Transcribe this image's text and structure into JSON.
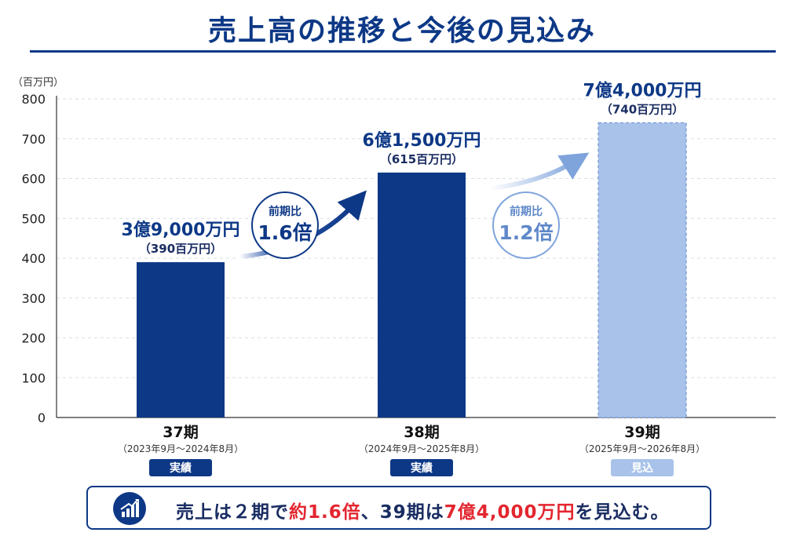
{
  "title": "売上高の推移と今後の見込み",
  "unit_label": "（百万円）",
  "chart_data": {
    "type": "bar",
    "ylabel": "（百万円）",
    "ylim": [
      0,
      800
    ],
    "yticks": [
      "0",
      "100",
      "200",
      "300",
      "400",
      "500",
      "600",
      "700",
      "800"
    ],
    "ytick_values": [
      0,
      100,
      200,
      300,
      400,
      500,
      600,
      700,
      800
    ],
    "grid": true,
    "categories": [
      "37期",
      "38期",
      "39期"
    ],
    "periods": [
      "（2023年9月～2024年8月）",
      "（2024年9月～2025年8月）",
      "（2025年9月～2026年8月）"
    ],
    "status": [
      "実績",
      "実績",
      "見込"
    ],
    "values": [
      390,
      615,
      740
    ],
    "labels_main": [
      "3億9,000万円",
      "6億1,500万円",
      "7億4,000万円"
    ],
    "labels_sub": [
      "（390百万円）",
      "（615百万円）",
      "（740百万円）"
    ],
    "colors": {
      "actual": "#0d3886",
      "forecast": "#a8c2ea",
      "forecast_border": "#6f95d3"
    },
    "annotations": [
      {
        "line1": "前期比",
        "line2": "1.6倍"
      },
      {
        "line1": "前期比",
        "line2": "1.2倍"
      }
    ]
  },
  "banner": {
    "icon": "chart-growth-icon",
    "part1": "売上は２期で",
    "part2": "約1.6倍",
    "part3": "、39期は",
    "part4": "7億4,000万円",
    "part5": "を見込む。"
  }
}
